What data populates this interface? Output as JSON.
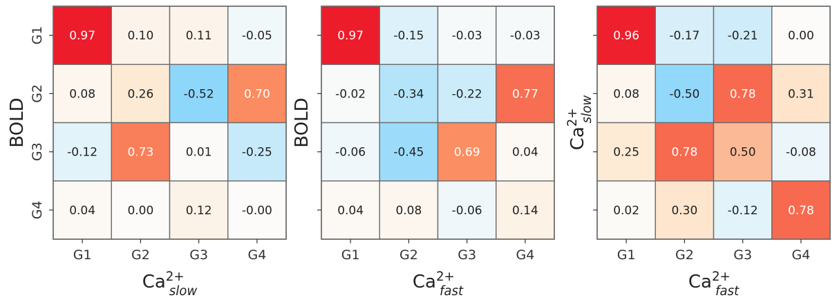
{
  "chart_data": [
    {
      "type": "heatmap",
      "xlabel": {
        "base": "Ca",
        "sup": "2+",
        "sub": "slow"
      },
      "ylabel": {
        "base": "BOLD"
      },
      "x_categories": [
        "G1",
        "G2",
        "G3",
        "G4"
      ],
      "y_categories": [
        "G1",
        "G2",
        "G3",
        "G4"
      ],
      "show_y_tick_labels": true,
      "values": [
        [
          0.97,
          0.1,
          0.11,
          -0.05
        ],
        [
          0.08,
          0.26,
          -0.52,
          0.7
        ],
        [
          -0.12,
          0.73,
          0.01,
          -0.25
        ],
        [
          0.04,
          0.0,
          0.12,
          -0.0
        ]
      ],
      "labels": [
        [
          "0.97",
          "0.10",
          "0.11",
          "-0.05"
        ],
        [
          "0.08",
          "0.26",
          "-0.52",
          "0.70"
        ],
        [
          "-0.12",
          "0.73",
          "0.01",
          "-0.25"
        ],
        [
          "0.04",
          "0.00",
          "0.12",
          "-0.00"
        ]
      ]
    },
    {
      "type": "heatmap",
      "xlabel": {
        "base": "Ca",
        "sup": "2+",
        "sub": "fast"
      },
      "ylabel": {
        "base": "BOLD"
      },
      "x_categories": [
        "G1",
        "G2",
        "G3",
        "G4"
      ],
      "y_categories": [
        "G1",
        "G2",
        "G3",
        "G4"
      ],
      "show_y_tick_labels": false,
      "values": [
        [
          0.97,
          -0.15,
          -0.03,
          -0.03
        ],
        [
          -0.02,
          -0.34,
          -0.22,
          0.77
        ],
        [
          -0.06,
          -0.45,
          0.69,
          0.04
        ],
        [
          0.04,
          0.08,
          -0.06,
          0.14
        ]
      ],
      "labels": [
        [
          "0.97",
          "-0.15",
          "-0.03",
          "-0.03"
        ],
        [
          "-0.02",
          "-0.34",
          "-0.22",
          "0.77"
        ],
        [
          "-0.06",
          "-0.45",
          "0.69",
          "0.04"
        ],
        [
          "0.04",
          "0.08",
          "-0.06",
          "0.14"
        ]
      ]
    },
    {
      "type": "heatmap",
      "xlabel": {
        "base": "Ca",
        "sup": "2+",
        "sub": "fast"
      },
      "ylabel": {
        "base": "Ca",
        "sup": "2+",
        "sub": "slow"
      },
      "x_categories": [
        "G1",
        "G2",
        "G3",
        "G4"
      ],
      "y_categories": [
        "G1",
        "G2",
        "G3",
        "G4"
      ],
      "show_y_tick_labels": false,
      "values": [
        [
          0.96,
          -0.17,
          -0.21,
          0.0
        ],
        [
          0.08,
          -0.5,
          0.78,
          0.31
        ],
        [
          0.25,
          0.78,
          0.5,
          -0.08
        ],
        [
          0.02,
          0.3,
          -0.12,
          0.78
        ]
      ],
      "labels": [
        [
          "0.96",
          "-0.17",
          "-0.21",
          "0.00"
        ],
        [
          "0.08",
          "-0.50",
          "0.78",
          "0.31"
        ],
        [
          "0.25",
          "0.78",
          "0.50",
          "-0.08"
        ],
        [
          "0.02",
          "0.30",
          "-0.12",
          "0.78"
        ]
      ]
    }
  ],
  "colors": {
    "max_positive": "#ed1c2b",
    "mid_positive": "#fb8c60",
    "min_negative": "#87d5fa",
    "neutral": "#fcfbfa",
    "grid_line": "#6b6b6b",
    "light_text": "#ffffff",
    "dark_text": "#222222"
  },
  "value_range": [
    -0.55,
    0.97
  ]
}
